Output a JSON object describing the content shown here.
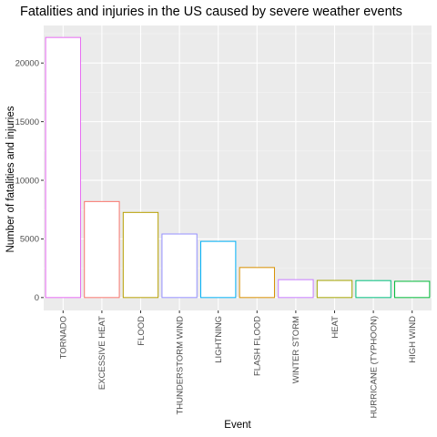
{
  "chart_data": {
    "type": "bar",
    "title": "Fatalities and injuries in the US caused by severe weather events",
    "xlabel": "Event",
    "ylabel": "Number of fatalities and injuries",
    "categories": [
      "TORNADO",
      "EXCESSIVE HEAT",
      "FLOOD",
      "THUNDERSTORM WIND",
      "LIGHTNING",
      "FLASH FLOOD",
      "WINTER STORM",
      "HEAT",
      "HURRICANE (TYPHOON)",
      "HIGH WIND"
    ],
    "values": [
      22178,
      8188,
      7259,
      5420,
      4790,
      2561,
      1527,
      1459,
      1446,
      1385
    ],
    "colors": [
      "#E76BF3",
      "#F8766D",
      "#B79F00",
      "#9590FF",
      "#00B0F6",
      "#D89000",
      "#C77CFF",
      "#A3A500",
      "#00BF7D",
      "#00BA38"
    ],
    "fill": "#FFFFFF",
    "y_ticks": [
      0,
      5000,
      10000,
      15000,
      20000
    ],
    "y_tick_labels": [
      "0",
      "5000",
      "10000",
      "15000",
      "20000"
    ],
    "ylim": [
      -1100,
      23200
    ],
    "grid": true,
    "legend": "none"
  }
}
